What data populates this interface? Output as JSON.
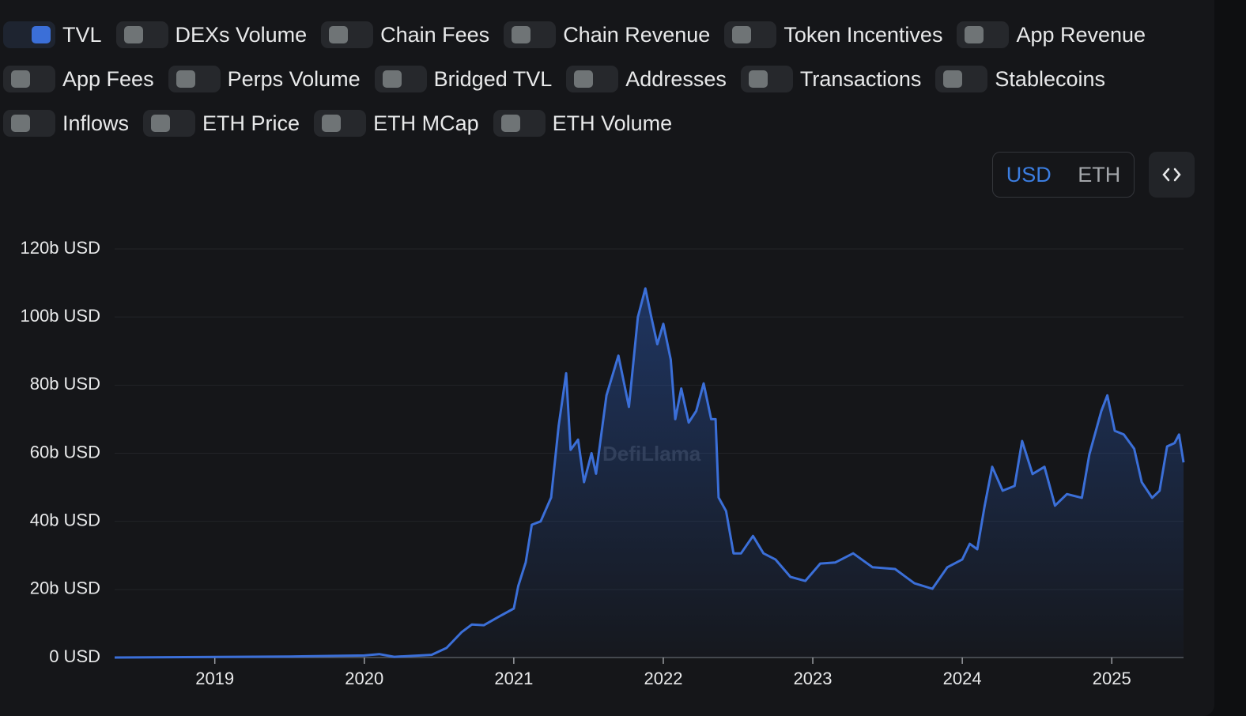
{
  "toggle_rows": [
    [
      {
        "label": "TVL",
        "checked": true
      },
      {
        "label": "DEXs Volume",
        "checked": false
      },
      {
        "label": "Chain Fees",
        "checked": false
      },
      {
        "label": "Chain Revenue",
        "checked": false
      },
      {
        "label": "Token Incentives",
        "checked": false
      },
      {
        "label": "App Revenue",
        "checked": false
      }
    ],
    [
      {
        "label": "App Fees",
        "checked": false
      },
      {
        "label": "Perps Volume",
        "checked": false
      },
      {
        "label": "Bridged TVL",
        "checked": false
      },
      {
        "label": "Addresses",
        "checked": false
      },
      {
        "label": "Transactions",
        "checked": false
      },
      {
        "label": "Stablecoins",
        "checked": false
      }
    ],
    [
      {
        "label": "Inflows",
        "checked": false
      },
      {
        "label": "ETH Price",
        "checked": false
      },
      {
        "label": "ETH MCap",
        "checked": false
      },
      {
        "label": "ETH Volume",
        "checked": false
      }
    ]
  ],
  "currency_options": [
    "USD",
    "ETH"
  ],
  "selected_currency": "USD",
  "chart_data": {
    "type": "area",
    "watermark": "DefiLlama",
    "series": [
      {
        "name": "TVL",
        "color": "#3b6fd8",
        "x": [
          2018.33,
          2019.5,
          2020.0,
          2020.1,
          2020.2,
          2020.45,
          2020.55,
          2020.65,
          2020.72,
          2020.8,
          2020.9,
          2021.0,
          2021.03,
          2021.08,
          2021.12,
          2021.18,
          2021.25,
          2021.3,
          2021.35,
          2021.38,
          2021.43,
          2021.47,
          2021.52,
          2021.55,
          2021.62,
          2021.7,
          2021.77,
          2021.83,
          2021.88,
          2021.92,
          2021.96,
          2022.0,
          2022.05,
          2022.08,
          2022.12,
          2022.17,
          2022.22,
          2022.27,
          2022.32,
          2022.35,
          2022.37,
          2022.42,
          2022.47,
          2022.52,
          2022.6,
          2022.67,
          2022.75,
          2022.85,
          2022.95,
          2023.05,
          2023.15,
          2023.27,
          2023.4,
          2023.55,
          2023.68,
          2023.8,
          2023.9,
          2024.0,
          2024.05,
          2024.1,
          2024.15,
          2024.2,
          2024.27,
          2024.35,
          2024.4,
          2024.47,
          2024.55,
          2024.62,
          2024.7,
          2024.8,
          2024.85,
          2024.93,
          2024.97,
          2025.02,
          2025.08,
          2025.15,
          2025.2,
          2025.27,
          2025.32,
          2025.37,
          2025.42,
          2025.45,
          2025.48
        ],
        "values": [
          0,
          0.3,
          0.6,
          1,
          0.2,
          0.8,
          2.8,
          7.4,
          9.7,
          9.5,
          12,
          14.4,
          21,
          28,
          39,
          40,
          47,
          68,
          83.5,
          61,
          64,
          51.5,
          60,
          54,
          77,
          88.7,
          73.6,
          100,
          108.4,
          100,
          92,
          98,
          87.5,
          70,
          79,
          69,
          72.4,
          80.5,
          70,
          70,
          47,
          43,
          30.6,
          30.6,
          35.7,
          30.6,
          28.8,
          23.7,
          22.5,
          27.6,
          27.9,
          30.6,
          26.5,
          26,
          21.8,
          20.2,
          26.5,
          28.8,
          33.4,
          31.8,
          44.6,
          56,
          49,
          50.4,
          63.6,
          53.9,
          56,
          44.6,
          48,
          46.9,
          59.7,
          72.4,
          77,
          66.6,
          65.5,
          61.3,
          51.5,
          46.9,
          49,
          62,
          63,
          65.5,
          57.3
        ]
      }
    ],
    "xlim": [
      2018.33,
      2025.48
    ],
    "xticks": [
      2019,
      2020,
      2021,
      2022,
      2023,
      2024,
      2025
    ],
    "ylim": [
      0,
      120
    ],
    "yticks": [
      {
        "value": 0,
        "label": "0 USD"
      },
      {
        "value": 20,
        "label": "20b USD"
      },
      {
        "value": 40,
        "label": "40b USD"
      },
      {
        "value": 60,
        "label": "60b USD"
      },
      {
        "value": 80,
        "label": "80b USD"
      },
      {
        "value": 100,
        "label": "100b USD"
      },
      {
        "value": 120,
        "label": "120b USD"
      }
    ],
    "grid": true
  }
}
